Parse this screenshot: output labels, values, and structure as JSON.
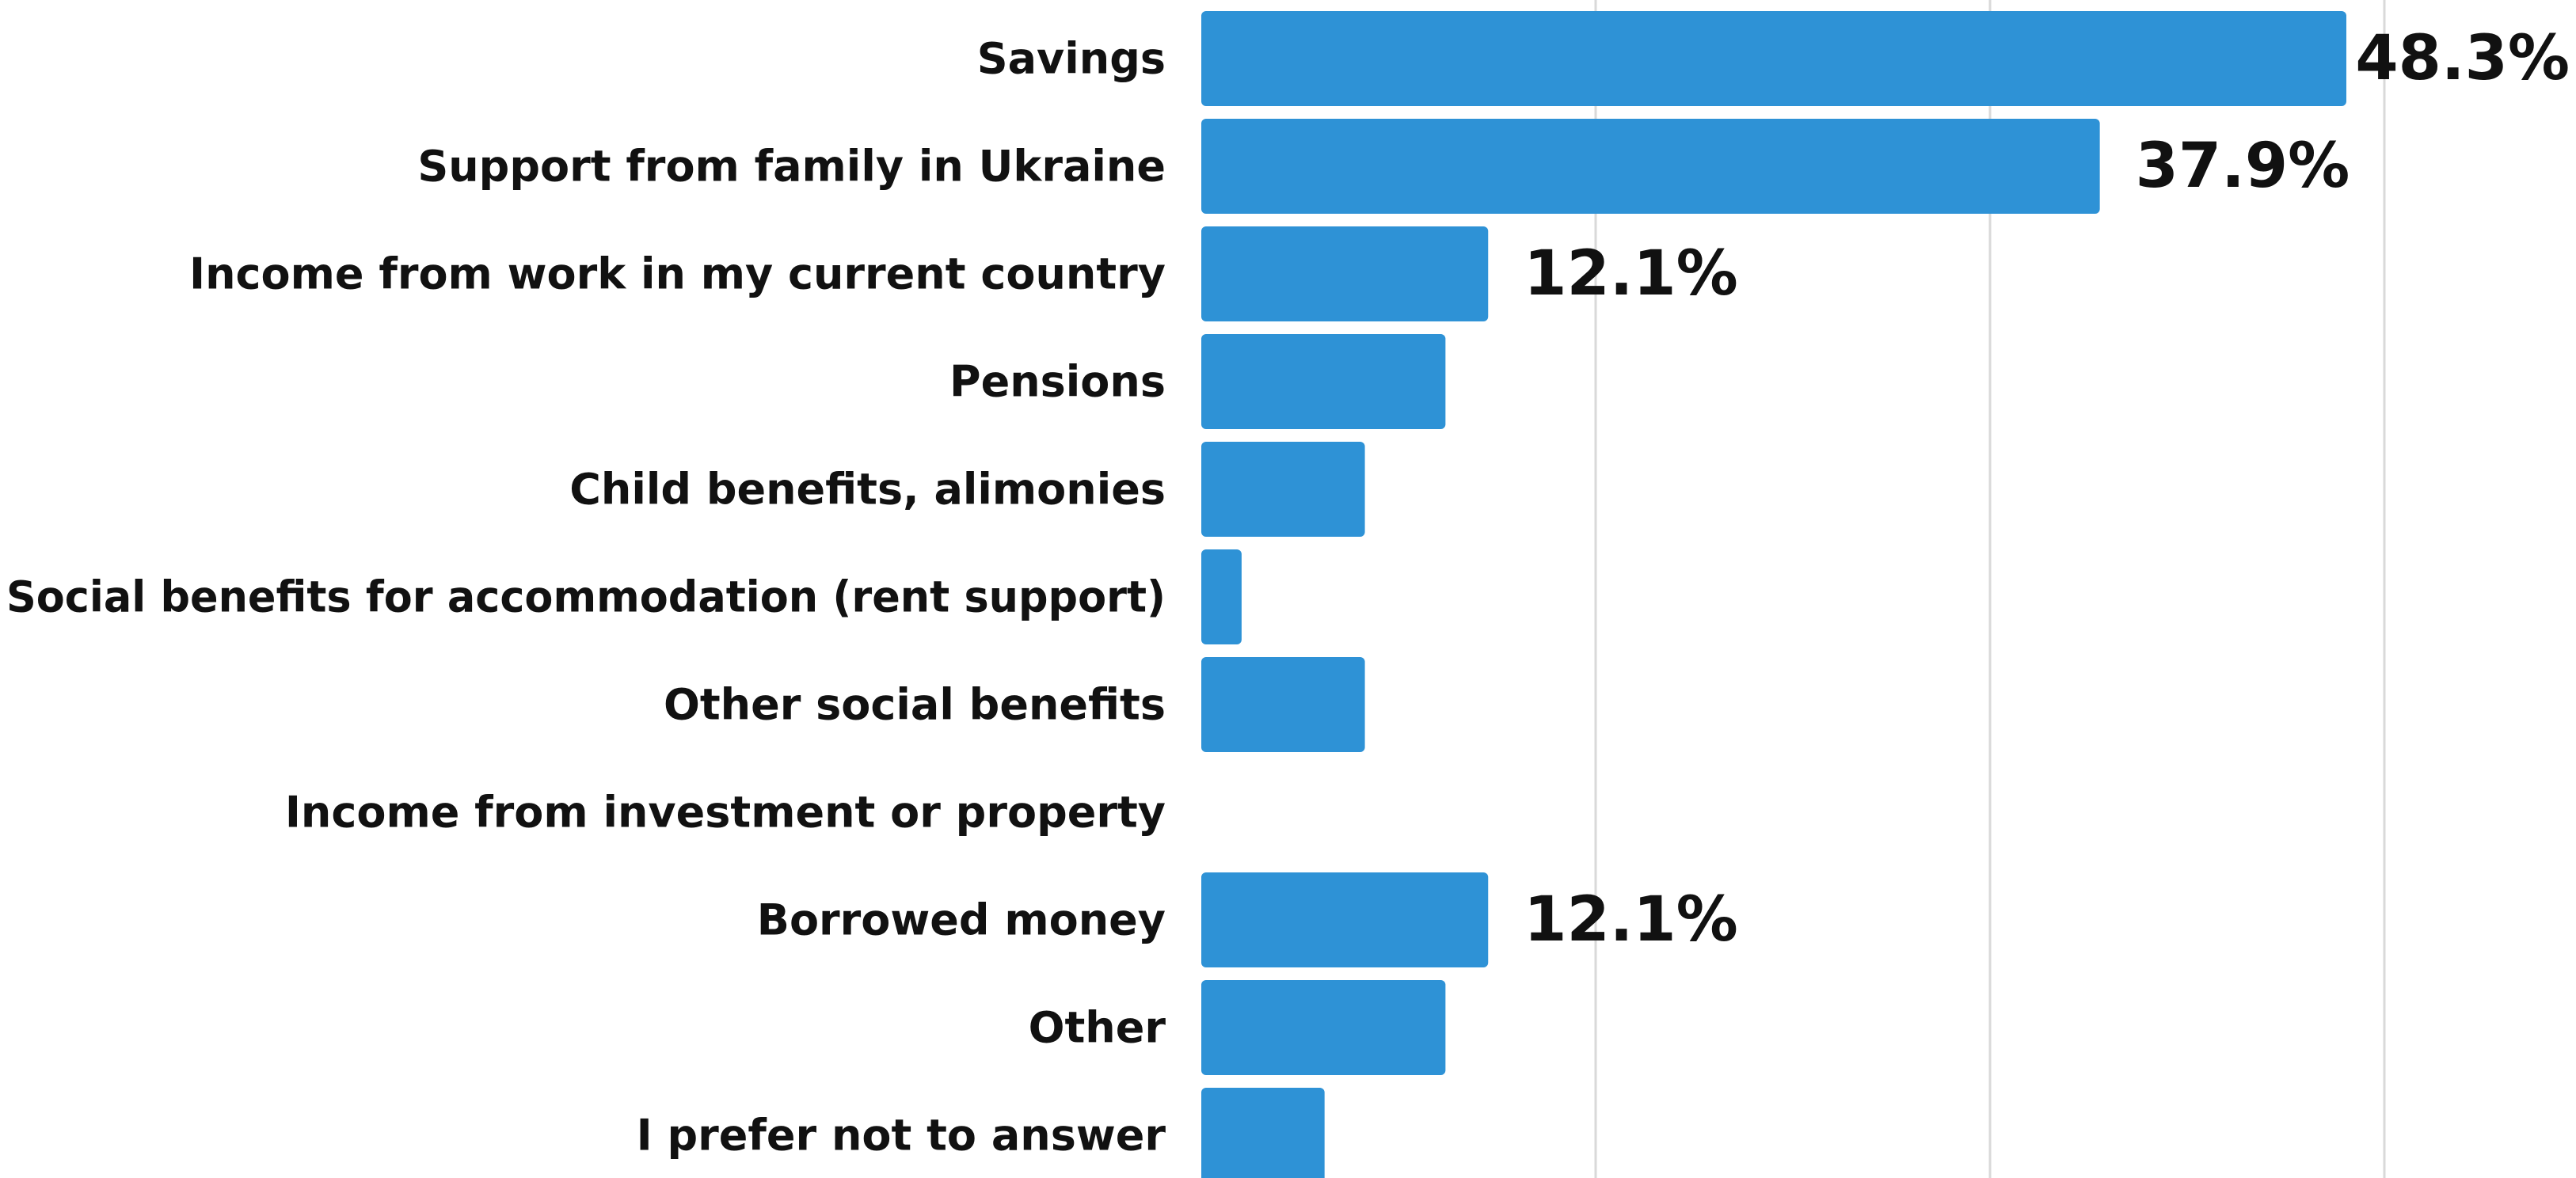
{
  "chart_data": {
    "type": "bar",
    "orientation": "horizontal",
    "categories": [
      "Savings",
      "Support from family in Ukraine",
      "Income from work in my current country",
      "Pensions",
      "Child benefits, alimonies",
      "Social benefits for accommodation (rent support)",
      "Other social benefits",
      "Income from investment or property",
      "Borrowed money",
      "Other",
      "I prefer not to answer"
    ],
    "values": [
      48.3,
      37.9,
      12.1,
      10.3,
      6.9,
      1.7,
      6.9,
      0,
      12.1,
      10.3,
      5.2
    ],
    "data_labels": [
      "48.3%",
      "37.9%",
      "12.1%",
      "",
      "",
      "",
      "",
      "",
      "12.1%",
      "",
      ""
    ],
    "xlim": [
      0,
      52
    ],
    "grid": true,
    "bar_color": "#2e92d6",
    "grid_color": "#d9d9d9",
    "title": "",
    "xlabel": "",
    "ylabel": ""
  }
}
